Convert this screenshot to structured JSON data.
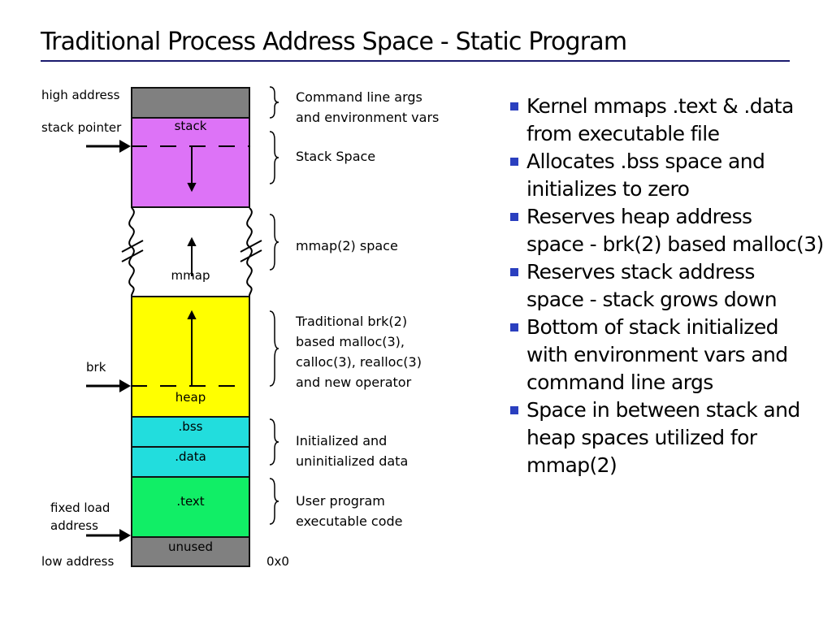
{
  "title": "Traditional Process Address Space - Static Program",
  "left_labels": {
    "high": "high address",
    "sp": "stack pointer",
    "brk": "brk",
    "fixed1": "fixed load",
    "fixed2": "address",
    "low": "low address",
    "zero": "0x0"
  },
  "segments": {
    "stack": "stack",
    "mmap": "mmap",
    "heap": "heap",
    "bss": ".bss",
    "data": ".data",
    "text": ".text",
    "unused": "unused"
  },
  "descriptions": [
    [
      "Command line args",
      "and environment vars"
    ],
    [
      "Stack Space"
    ],
    [
      "mmap(2) space"
    ],
    [
      "Traditional brk(2)",
      "based malloc(3),",
      "calloc(3), realloc(3)",
      "and new operator"
    ],
    [
      "Initialized and",
      "uninitialized data"
    ],
    [
      "User program",
      "executable code"
    ]
  ],
  "bullets": [
    [
      "Kernel mmaps .text & .data",
      "from executable file"
    ],
    [
      "Allocates .bss space and",
      "initializes to zero"
    ],
    [
      "Reserves heap address",
      "space - brk(2) based malloc(3)"
    ],
    [
      "Reserves stack address",
      "space - stack grows down"
    ],
    [
      "Bottom of stack initialized",
      "with environment vars and",
      "command line args"
    ],
    [
      "Space in between stack and",
      "heap spaces utilized for",
      "mmap(2)"
    ]
  ],
  "colors": {
    "grey": "#808080",
    "stack": "#dd73f7",
    "heap": "#ffff00",
    "data": "#22dddd",
    "text": "#11ee66",
    "bullet": "#2a3fbf"
  }
}
